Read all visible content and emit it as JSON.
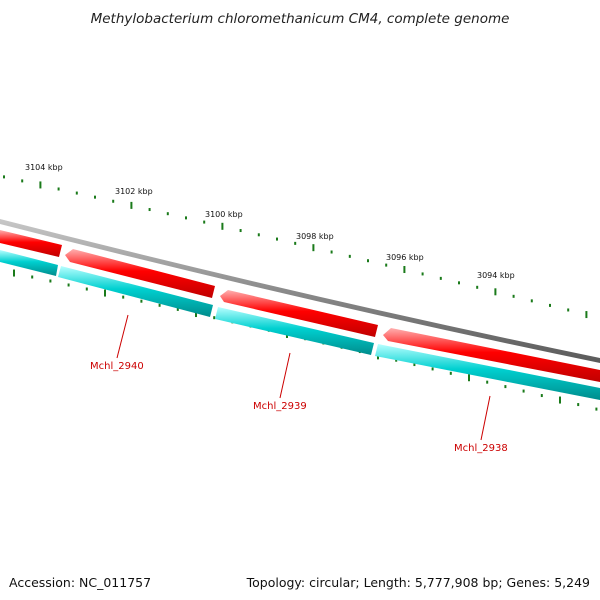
{
  "title": "Methylobacterium chloromethanicum CM4, complete genome",
  "accession_label": "Accession: NC_011757",
  "summary_label": "Topology: circular; Length: 5,777,908 bp; Genes: 5,249",
  "ticks": [
    {
      "label": "3104 kbp"
    },
    {
      "label": "3102 kbp"
    },
    {
      "label": "3100 kbp"
    },
    {
      "label": "3098 kbp"
    },
    {
      "label": "3096 kbp"
    },
    {
      "label": "3094 kbp"
    }
  ],
  "genes": [
    {
      "name": "Mchl_2940"
    },
    {
      "name": "Mchl_2939"
    },
    {
      "name": "Mchl_2938"
    }
  ],
  "colors": {
    "backbone": "#8a8a8a",
    "gene_red": "#ff0000",
    "gene_cyan": "#00c8c8",
    "tick_green": "#1a7a1a",
    "label_red": "#cc0000"
  }
}
